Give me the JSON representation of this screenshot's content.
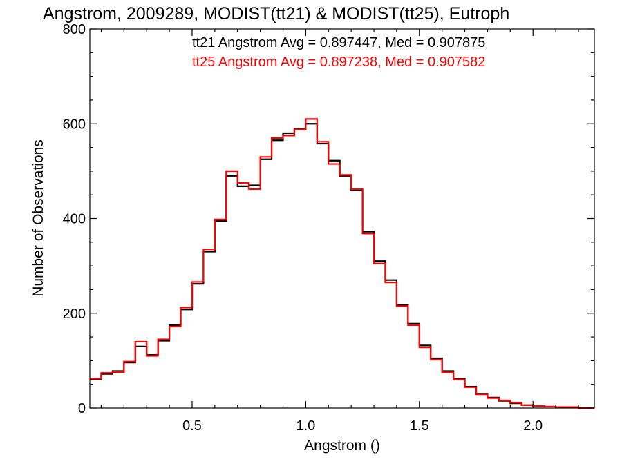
{
  "chart_data": {
    "type": "line",
    "title": "Angstrom, 2009289, MODIST(tt21) & MODIST(tt25), Eutroph",
    "xlabel": "Angstrom ()",
    "ylabel": "Number of Observations",
    "xlim": [
      0.05,
      2.27
    ],
    "ylim": [
      0,
      800
    ],
    "xticks": [
      0.5,
      1.0,
      1.5,
      2.0
    ],
    "xtick_labels": [
      "0.5",
      "1.0",
      "1.5",
      "2.0"
    ],
    "yticks": [
      0,
      200,
      400,
      600,
      800
    ],
    "ytick_labels": [
      "0",
      "200",
      "400",
      "600",
      "800"
    ],
    "step": "histogram",
    "legend_placement": "top-right",
    "annotations": [
      {
        "text": "tt21 Angstrom Avg = 0.897447, Med = 0.907875",
        "color": "#000000"
      },
      {
        "text": "tt25 Angstrom Avg = 0.897238, Med = 0.907582",
        "color": "#ff0000"
      }
    ],
    "series": [
      {
        "color": "#000000",
        "x": [
          0.05,
          0.1,
          0.15,
          0.2,
          0.25,
          0.3,
          0.35,
          0.4,
          0.45,
          0.5,
          0.55,
          0.6,
          0.65,
          0.7,
          0.75,
          0.8,
          0.85,
          0.9,
          0.95,
          1.0,
          1.05,
          1.1,
          1.15,
          1.2,
          1.25,
          1.3,
          1.35,
          1.4,
          1.45,
          1.5,
          1.55,
          1.6,
          1.65,
          1.7,
          1.75,
          1.8,
          1.85,
          1.9,
          1.95,
          2.0,
          2.05,
          2.1,
          2.15,
          2.2,
          2.27
        ],
        "values": [
          60,
          72,
          78,
          96,
          130,
          112,
          142,
          175,
          208,
          262,
          330,
          395,
          490,
          468,
          470,
          525,
          565,
          580,
          590,
          600,
          558,
          522,
          490,
          460,
          372,
          310,
          270,
          218,
          178,
          132,
          105,
          78,
          62,
          45,
          30,
          22,
          15,
          10,
          6,
          4,
          3,
          2,
          1,
          0,
          0
        ]
      },
      {
        "color": "#ff0000",
        "x": [
          0.05,
          0.1,
          0.15,
          0.2,
          0.25,
          0.3,
          0.35,
          0.4,
          0.45,
          0.5,
          0.55,
          0.6,
          0.65,
          0.7,
          0.75,
          0.8,
          0.85,
          0.9,
          0.95,
          1.0,
          1.05,
          1.1,
          1.15,
          1.2,
          1.25,
          1.3,
          1.35,
          1.4,
          1.45,
          1.5,
          1.55,
          1.6,
          1.65,
          1.7,
          1.75,
          1.8,
          1.85,
          1.9,
          1.95,
          2.0,
          2.05,
          2.1,
          2.15,
          2.2,
          2.27
        ],
        "values": [
          62,
          74,
          76,
          98,
          140,
          110,
          145,
          172,
          212,
          266,
          335,
          398,
          500,
          475,
          462,
          530,
          570,
          575,
          588,
          610,
          562,
          515,
          492,
          462,
          368,
          305,
          265,
          215,
          175,
          128,
          102,
          75,
          60,
          44,
          29,
          21,
          16,
          11,
          6,
          4,
          3,
          2,
          2,
          0,
          0
        ]
      }
    ]
  }
}
